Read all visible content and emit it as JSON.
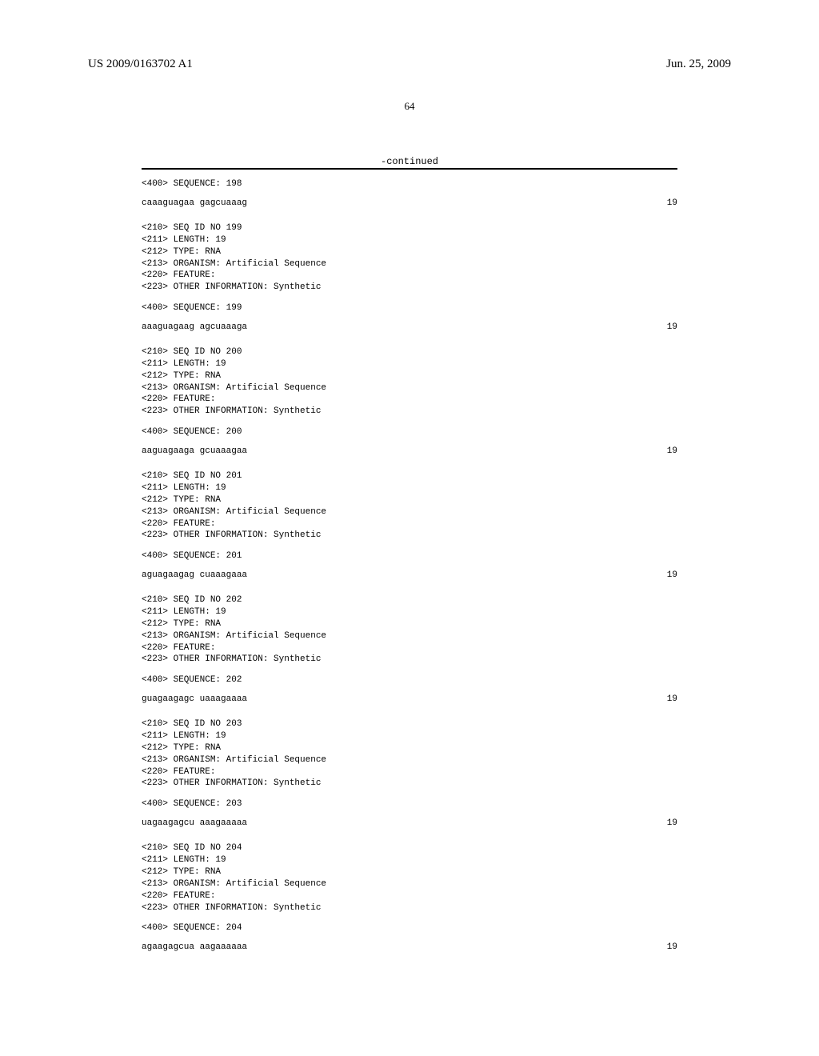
{
  "header": {
    "doc_number": "US 2009/0163702 A1",
    "date": "Jun. 25, 2009"
  },
  "page_number": "64",
  "continued_label": "-continued",
  "entries": [
    {
      "seq_label_top": "<400> SEQUENCE: 198",
      "sequence": "caaaguagaa gagcuaaag",
      "length_number": "19"
    },
    {
      "meta": [
        "<210> SEQ ID NO 199",
        "<211> LENGTH: 19",
        "<212> TYPE: RNA",
        "<213> ORGANISM: Artificial Sequence",
        "<220> FEATURE:",
        "<223> OTHER INFORMATION: Synthetic"
      ],
      "seq_label": "<400> SEQUENCE: 199",
      "sequence": "aaaguagaag agcuaaaga",
      "length_number": "19"
    },
    {
      "meta": [
        "<210> SEQ ID NO 200",
        "<211> LENGTH: 19",
        "<212> TYPE: RNA",
        "<213> ORGANISM: Artificial Sequence",
        "<220> FEATURE:",
        "<223> OTHER INFORMATION: Synthetic"
      ],
      "seq_label": "<400> SEQUENCE: 200",
      "sequence": "aaguagaaga gcuaaagaa",
      "length_number": "19"
    },
    {
      "meta": [
        "<210> SEQ ID NO 201",
        "<211> LENGTH: 19",
        "<212> TYPE: RNA",
        "<213> ORGANISM: Artificial Sequence",
        "<220> FEATURE:",
        "<223> OTHER INFORMATION: Synthetic"
      ],
      "seq_label": "<400> SEQUENCE: 201",
      "sequence": "aguagaagag cuaaagaaa",
      "length_number": "19"
    },
    {
      "meta": [
        "<210> SEQ ID NO 202",
        "<211> LENGTH: 19",
        "<212> TYPE: RNA",
        "<213> ORGANISM: Artificial Sequence",
        "<220> FEATURE:",
        "<223> OTHER INFORMATION: Synthetic"
      ],
      "seq_label": "<400> SEQUENCE: 202",
      "sequence": "guagaagagc uaaagaaaa",
      "length_number": "19"
    },
    {
      "meta": [
        "<210> SEQ ID NO 203",
        "<211> LENGTH: 19",
        "<212> TYPE: RNA",
        "<213> ORGANISM: Artificial Sequence",
        "<220> FEATURE:",
        "<223> OTHER INFORMATION: Synthetic"
      ],
      "seq_label": "<400> SEQUENCE: 203",
      "sequence": "uagaagagcu aaagaaaaa",
      "length_number": "19"
    },
    {
      "meta": [
        "<210> SEQ ID NO 204",
        "<211> LENGTH: 19",
        "<212> TYPE: RNA",
        "<213> ORGANISM: Artificial Sequence",
        "<220> FEATURE:",
        "<223> OTHER INFORMATION: Synthetic"
      ],
      "seq_label": "<400> SEQUENCE: 204",
      "sequence": "agaagagcua aagaaaaaa",
      "length_number": "19"
    }
  ]
}
